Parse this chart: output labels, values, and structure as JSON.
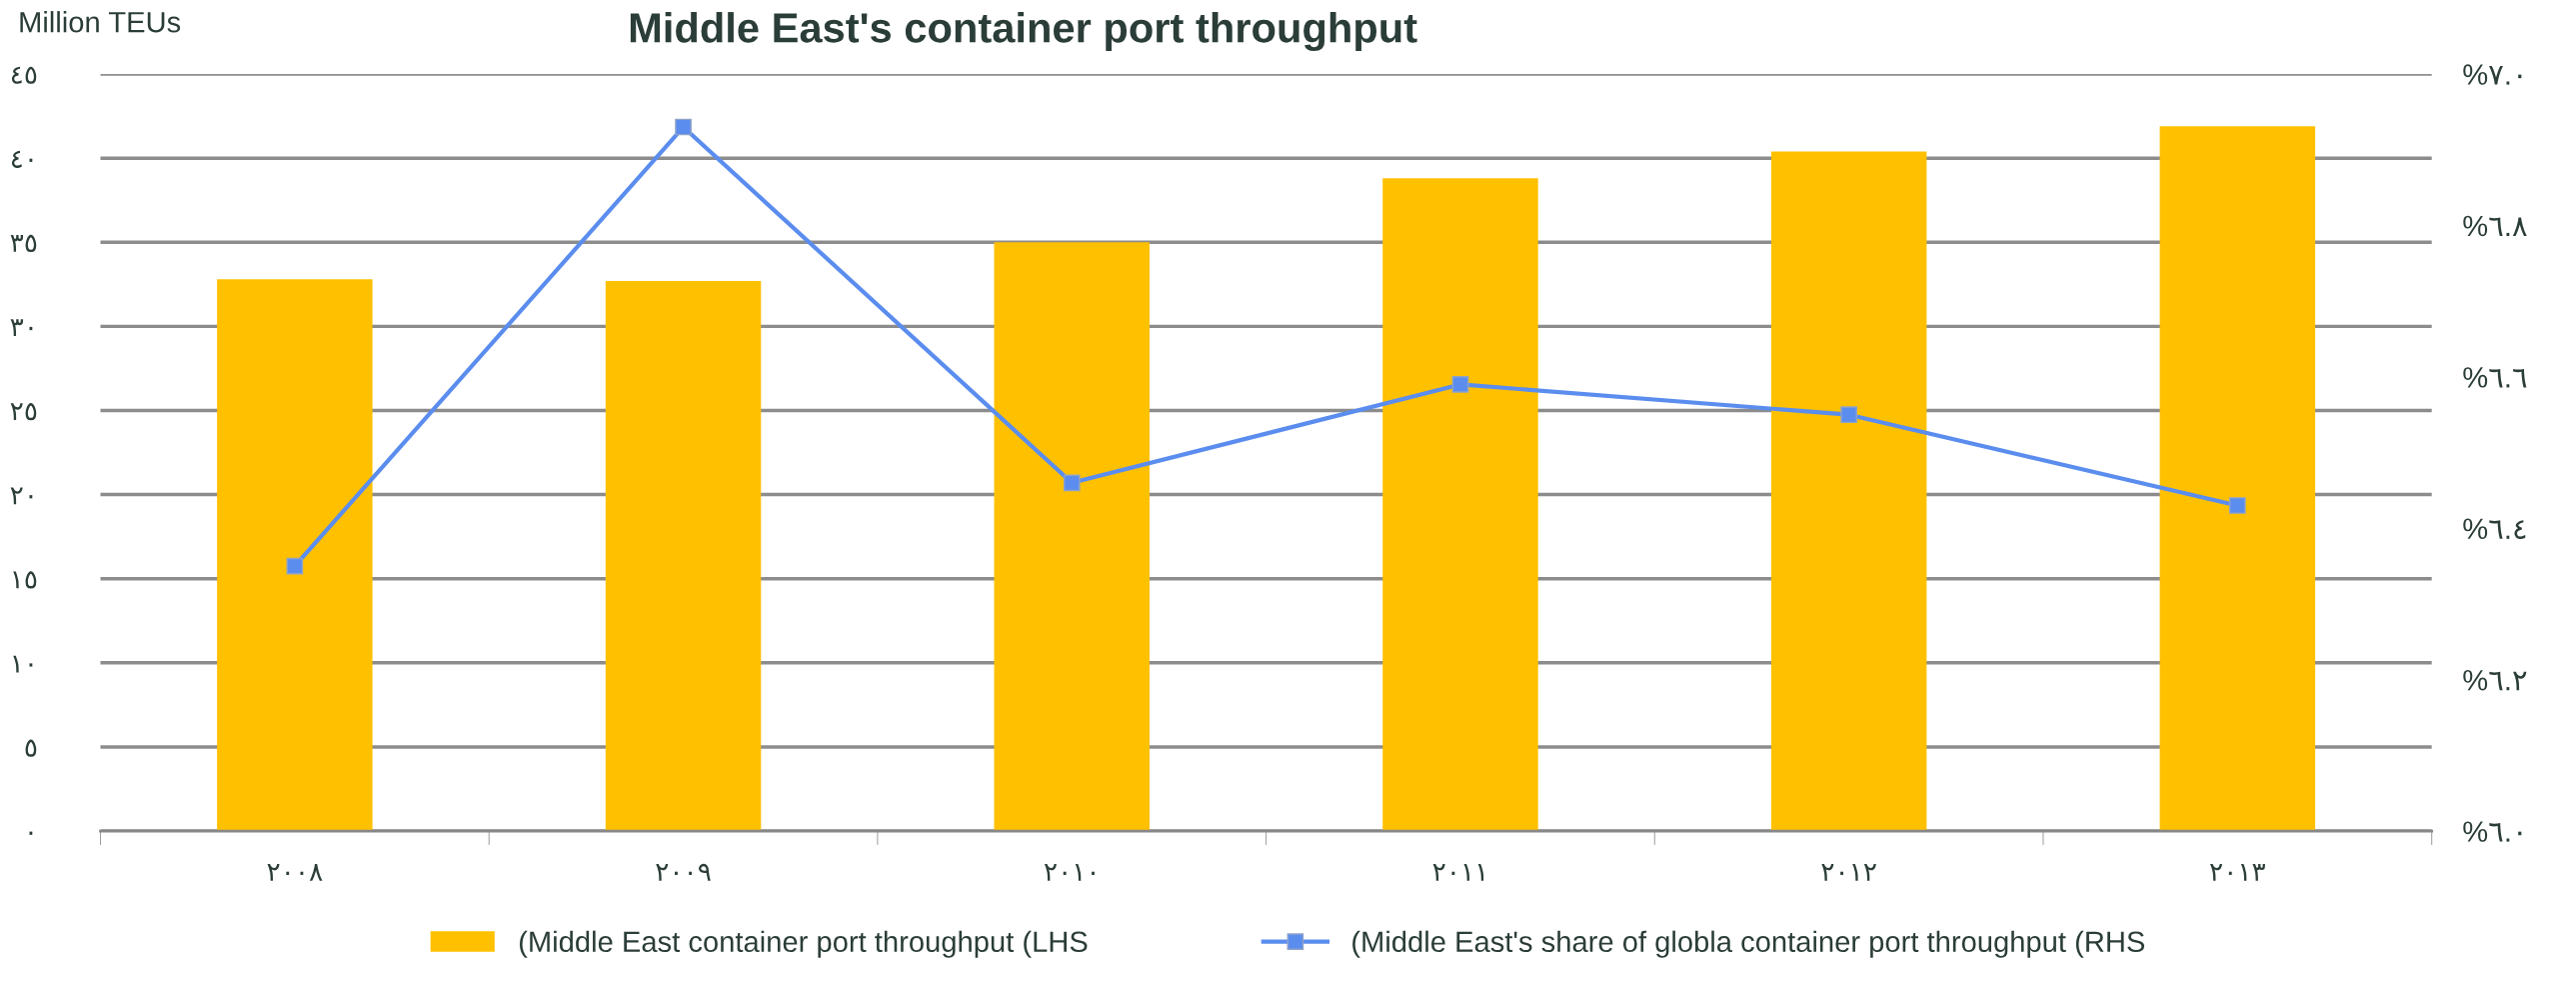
{
  "chart_data": {
    "type": "bar",
    "title": "Middle East's container port throughput",
    "ylabel": "Million TEUs",
    "categories": [
      "٢٠٠٨",
      "٢٠٠٩",
      "٢٠١٠",
      "٢٠١١",
      "٢٠١٢",
      "٢٠١٣"
    ],
    "series": [
      {
        "name": "(Middle East container port throughput (LHS",
        "color": "#ffc000",
        "values": [
          32.8,
          32.7,
          35.0,
          38.8,
          40.4,
          41.9
        ]
      },
      {
        "name": "(Middle East's share of globla container port throughput (RHS",
        "color": "#5b8def",
        "type": "line",
        "axis": "y2",
        "marker": "square",
        "values": [
          6.35,
          6.93,
          6.46,
          6.59,
          6.55,
          6.43
        ]
      }
    ],
    "ylim": [
      0,
      45
    ],
    "yticks": [
      {
        "value": 0,
        "label": "٠"
      },
      {
        "value": 5,
        "label": "٥"
      },
      {
        "value": 10,
        "label": "١٠"
      },
      {
        "value": 15,
        "label": "١٥"
      },
      {
        "value": 20,
        "label": "٢٠"
      },
      {
        "value": 25,
        "label": "٢٥"
      },
      {
        "value": 30,
        "label": "٣٠"
      },
      {
        "value": 35,
        "label": "٣٥"
      },
      {
        "value": 40,
        "label": "٤٠"
      },
      {
        "value": 45,
        "label": "٤٥"
      }
    ],
    "y2lim": [
      6.0,
      7.0
    ],
    "y2ticks": [
      {
        "value": 6.0,
        "label": "%٦.٠"
      },
      {
        "value": 6.2,
        "label": "%٦.٢"
      },
      {
        "value": 6.4,
        "label": "%٦.٤"
      },
      {
        "value": 6.6,
        "label": "%٦.٦"
      },
      {
        "value": 6.8,
        "label": "%٦.٨"
      },
      {
        "value": 7.0,
        "label": "%٧.٠"
      }
    ],
    "grid": "y",
    "legend": "bottom"
  }
}
